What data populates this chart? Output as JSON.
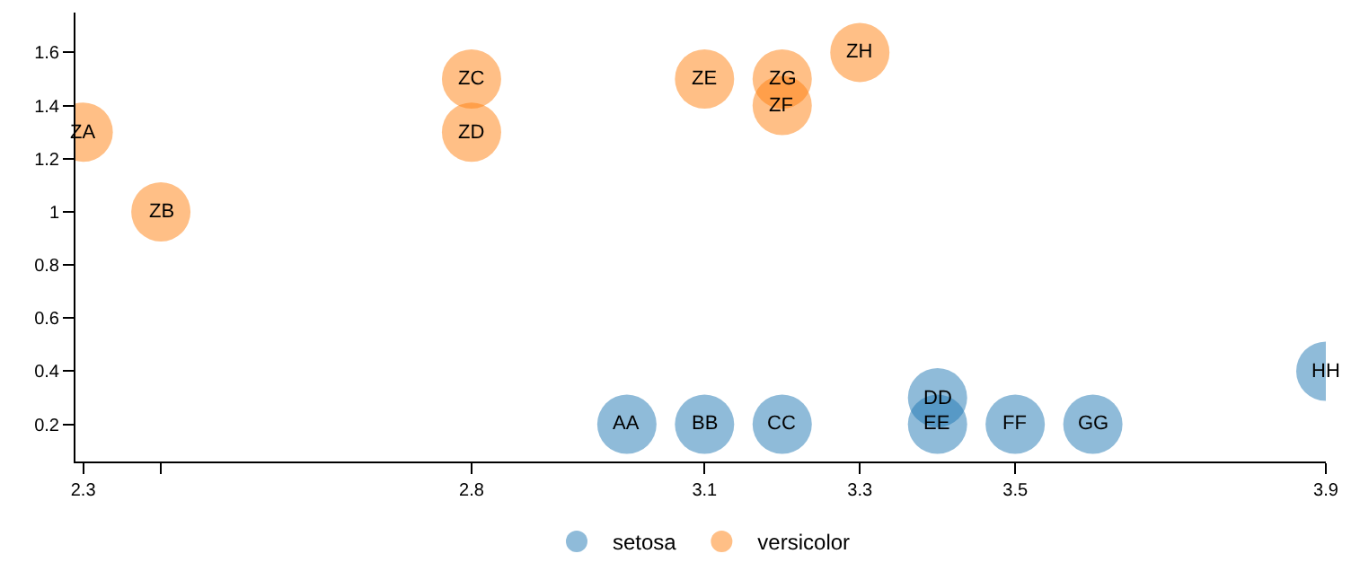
{
  "chart_data": {
    "type": "scatter",
    "series": [
      {
        "name": "setosa",
        "color": "#1f77b4",
        "x": [
          3.0,
          3.1,
          3.2,
          3.4,
          3.4,
          3.5,
          3.6,
          3.9
        ],
        "values": [
          0.2,
          0.2,
          0.2,
          0.3,
          0.2,
          0.2,
          0.2,
          0.4
        ]
      },
      {
        "name": "versicolor",
        "color": "#ff7f0e",
        "x": [
          2.3,
          2.4,
          2.8,
          2.8,
          3.1,
          3.2,
          3.2,
          3.3
        ],
        "values": [
          1.3,
          1.0,
          1.5,
          1.3,
          1.5,
          1.4,
          1.5,
          1.6
        ]
      }
    ],
    "annotations": [
      {
        "text": "AA",
        "x": 3.0,
        "y": 0.2
      },
      {
        "text": "BB",
        "x": 3.1,
        "y": 0.2
      },
      {
        "text": "CC",
        "x": 3.2,
        "y": 0.2
      },
      {
        "text": "DD",
        "x": 3.4,
        "y": 0.3
      },
      {
        "text": "EE",
        "x": 3.4,
        "y": 0.2
      },
      {
        "text": "FF",
        "x": 3.5,
        "y": 0.2
      },
      {
        "text": "GG",
        "x": 3.6,
        "y": 0.2
      },
      {
        "text": "HH",
        "x": 3.9,
        "y": 0.4
      },
      {
        "text": "ZA",
        "x": 2.3,
        "y": 1.3
      },
      {
        "text": "ZB",
        "x": 2.4,
        "y": 1.0
      },
      {
        "text": "ZC",
        "x": 2.8,
        "y": 1.5
      },
      {
        "text": "ZD",
        "x": 2.8,
        "y": 1.3
      },
      {
        "text": "ZE",
        "x": 3.1,
        "y": 1.5
      },
      {
        "text": "ZF",
        "x": 3.2,
        "y": 1.4
      },
      {
        "text": "ZG",
        "x": 3.2,
        "y": 1.5
      },
      {
        "text": "ZH",
        "x": 3.3,
        "y": 1.6
      }
    ],
    "xlim": [
      2.29,
      3.9
    ],
    "xticks": [
      2.3,
      {
        "value": 2.4,
        "label": null
      },
      2.8,
      3.1,
      3.3,
      3.5,
      3.9
    ],
    "ylim": [
      0.06,
      1.75
    ],
    "yticks": [
      0.2,
      0.4,
      0.6,
      0.8,
      1,
      1.2,
      1.4,
      1.6
    ],
    "marker": "circle",
    "legend": "bottom"
  }
}
